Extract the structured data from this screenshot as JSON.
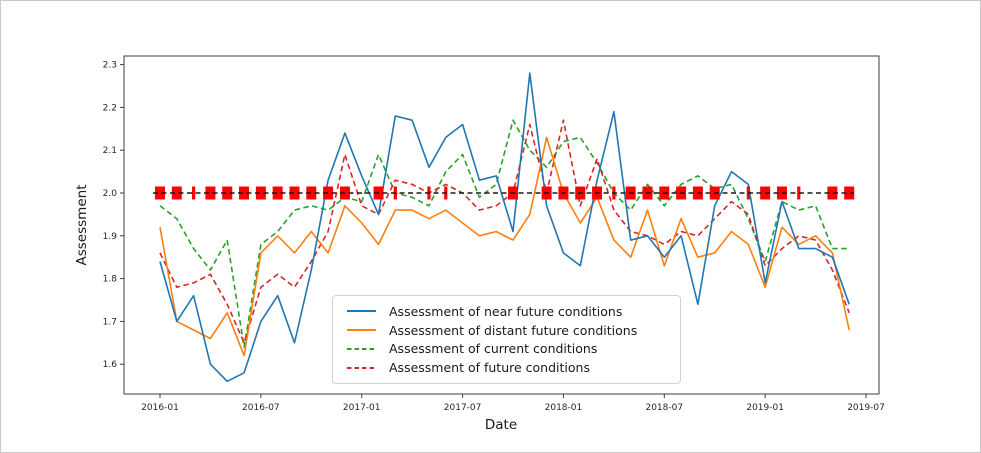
{
  "chart_data": {
    "type": "line",
    "title": "",
    "xlabel": "Date",
    "ylabel": "Assessment",
    "x_months": [
      "2016-01",
      "2016-02",
      "2016-03",
      "2016-04",
      "2016-05",
      "2016-06",
      "2016-07",
      "2016-08",
      "2016-09",
      "2016-10",
      "2016-11",
      "2016-12",
      "2017-01",
      "2017-02",
      "2017-03",
      "2017-04",
      "2017-05",
      "2017-06",
      "2017-07",
      "2017-08",
      "2017-09",
      "2017-10",
      "2017-11",
      "2017-12",
      "2018-01",
      "2018-02",
      "2018-03",
      "2018-04",
      "2018-05",
      "2018-06",
      "2018-07",
      "2018-08",
      "2018-09",
      "2018-10",
      "2018-11",
      "2018-12",
      "2019-01",
      "2019-02",
      "2019-03",
      "2019-04",
      "2019-05",
      "2019-06"
    ],
    "series": [
      {
        "name": "Assessment of near future conditions",
        "color": "#1f77b4",
        "style": "solid",
        "values": [
          1.84,
          1.7,
          1.76,
          1.6,
          1.56,
          1.58,
          1.7,
          1.76,
          1.65,
          1.82,
          2.03,
          2.14,
          2.04,
          1.95,
          2.18,
          2.17,
          2.06,
          2.13,
          2.16,
          2.03,
          2.04,
          1.91,
          2.28,
          1.97,
          1.86,
          1.83,
          2.03,
          2.19,
          1.89,
          1.9,
          1.85,
          1.9,
          1.74,
          1.97,
          2.05,
          2.02,
          1.79,
          1.98,
          1.87,
          1.87,
          1.85,
          1.74
        ]
      },
      {
        "name": "Assessment of distant future conditions",
        "color": "#ff7f0e",
        "style": "solid",
        "values": [
          1.92,
          1.7,
          1.68,
          1.66,
          1.72,
          1.62,
          1.86,
          1.9,
          1.86,
          1.91,
          1.86,
          1.97,
          1.93,
          1.88,
          1.96,
          1.96,
          1.94,
          1.96,
          1.93,
          1.9,
          1.91,
          1.89,
          1.95,
          2.13,
          2.0,
          1.93,
          1.99,
          1.89,
          1.85,
          1.96,
          1.83,
          1.94,
          1.85,
          1.86,
          1.91,
          1.88,
          1.78,
          1.92,
          1.88,
          1.9,
          1.86,
          1.68
        ]
      },
      {
        "name": "Assessment of current conditions",
        "color": "#2ca02c",
        "style": "dashed",
        "values": [
          1.97,
          1.94,
          1.87,
          1.82,
          1.89,
          1.64,
          1.88,
          1.91,
          1.96,
          1.97,
          1.96,
          1.99,
          1.98,
          2.09,
          2.0,
          1.99,
          1.97,
          2.05,
          2.09,
          1.99,
          2.02,
          2.17,
          2.1,
          2.06,
          2.12,
          2.13,
          2.07,
          2.0,
          1.96,
          2.02,
          1.97,
          2.02,
          2.04,
          2.01,
          2.02,
          1.94,
          1.84,
          1.98,
          1.96,
          1.97,
          1.87,
          1.87
        ]
      },
      {
        "name": "Assessment of future conditions",
        "color": "#d62728",
        "style": "dashed",
        "values": [
          1.86,
          1.78,
          1.79,
          1.81,
          1.74,
          1.65,
          1.78,
          1.81,
          1.78,
          1.84,
          1.91,
          2.09,
          1.97,
          1.95,
          2.03,
          2.02,
          2.0,
          2.02,
          2.0,
          1.96,
          1.97,
          2.0,
          2.16,
          2.0,
          2.17,
          1.97,
          2.08,
          1.96,
          1.91,
          1.9,
          1.88,
          1.91,
          1.9,
          1.94,
          1.98,
          1.95,
          1.83,
          1.87,
          1.9,
          1.89,
          1.82,
          1.72
        ]
      }
    ],
    "reference_line": {
      "value": 2.0,
      "color": "#1a1a1a",
      "style": "dashed",
      "marker_color": "#ff0000",
      "big_marker_months": [
        0,
        1,
        3,
        4,
        5,
        6,
        7,
        8,
        9,
        10,
        11,
        13,
        21,
        23,
        24,
        25,
        26,
        28,
        29,
        30,
        31,
        32,
        33,
        36,
        37,
        40,
        41
      ],
      "small_marker_months": [
        2,
        14,
        16,
        17,
        27,
        35,
        38
      ]
    },
    "ylim": [
      1.53,
      2.315
    ],
    "grid": false,
    "legend_position": "inside lower-center"
  },
  "axes": {
    "ytick_values": [
      2.3,
      2.2,
      2.1,
      2.0,
      1.9,
      1.8,
      1.7,
      1.6
    ],
    "ytick_labels": [
      "2.3",
      "2.2",
      "2.1",
      "2.0",
      "1.9",
      "1.8",
      "1.7",
      "1.6"
    ],
    "xtick_month_indices": [
      0,
      6,
      12,
      18,
      24,
      30,
      36,
      42
    ],
    "xtick_labels": [
      "2016-01",
      "2016-07",
      "2017-01",
      "2017-07",
      "2018-01",
      "2018-07",
      "2019-01",
      "2019-07"
    ],
    "frame_color": "#3c3c3c",
    "tick_text_color": "#262626"
  }
}
